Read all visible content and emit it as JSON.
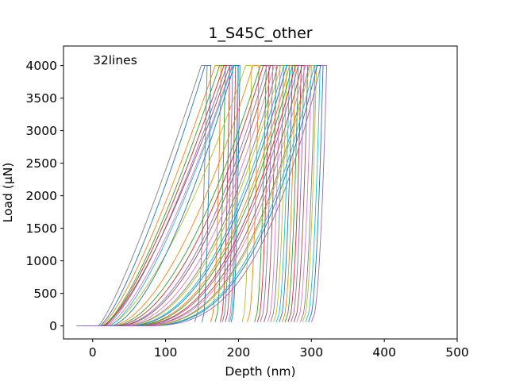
{
  "chart_data": {
    "type": "line",
    "title": "1_S45C_other",
    "xlabel": "Depth (nm)",
    "ylabel": "Load (µN)",
    "xlim": [
      -40,
      500
    ],
    "ylim": [
      -200,
      4300
    ],
    "xticks": [
      0,
      100,
      200,
      300,
      400,
      500
    ],
    "yticks": [
      0,
      500,
      1000,
      1500,
      2000,
      2500,
      3000,
      3500,
      4000
    ],
    "xtick_labels": [
      "0",
      "100",
      "200",
      "300",
      "400",
      "500"
    ],
    "ytick_labels": [
      "0",
      "500",
      "1000",
      "1500",
      "2000",
      "2500",
      "3000",
      "3500",
      "4000"
    ],
    "annotation": "32lines",
    "grid": false,
    "legend": "none",
    "line_count": 32,
    "series": [
      {
        "color": "#1f77b4",
        "start": -20,
        "onset": 10,
        "peak": 162,
        "unloadEnd": 150,
        "shape": 1.3
      },
      {
        "color": "#ff7f0e",
        "start": -15,
        "onset": 12,
        "peak": 176,
        "unloadEnd": 162,
        "shape": 1.3
      },
      {
        "color": "#2ca02c",
        "start": -18,
        "onset": 14,
        "peak": 182,
        "unloadEnd": 168,
        "shape": 1.35
      },
      {
        "color": "#d62728",
        "start": -12,
        "onset": 15,
        "peak": 188,
        "unloadEnd": 175,
        "shape": 1.35
      },
      {
        "color": "#9467bd",
        "start": -22,
        "onset": 16,
        "peak": 192,
        "unloadEnd": 178,
        "shape": 1.4
      },
      {
        "color": "#8c564b",
        "start": -10,
        "onset": 13,
        "peak": 196,
        "unloadEnd": 182,
        "shape": 1.4
      },
      {
        "color": "#e377c2",
        "start": -16,
        "onset": 18,
        "peak": 199,
        "unloadEnd": 186,
        "shape": 1.45
      },
      {
        "color": "#7f7f7f",
        "start": -20,
        "onset": 8,
        "peak": 157,
        "unloadEnd": 140,
        "shape": 1.2
      },
      {
        "color": "#bcbd22",
        "start": -14,
        "onset": 20,
        "peak": 218,
        "unloadEnd": 205,
        "shape": 1.5
      },
      {
        "color": "#17becf",
        "start": -18,
        "onset": 22,
        "peak": 200,
        "unloadEnd": 188,
        "shape": 1.45
      },
      {
        "color": "#1f77b4",
        "start": -8,
        "onset": 25,
        "peak": 202,
        "unloadEnd": 190,
        "shape": 1.6
      },
      {
        "color": "#ff7f0e",
        "start": -12,
        "onset": 26,
        "peak": 228,
        "unloadEnd": 212,
        "shape": 1.7
      },
      {
        "color": "#2ca02c",
        "start": -20,
        "onset": 28,
        "peak": 238,
        "unloadEnd": 222,
        "shape": 1.8
      },
      {
        "color": "#d62728",
        "start": -15,
        "onset": 30,
        "peak": 242,
        "unloadEnd": 226,
        "shape": 1.9
      },
      {
        "color": "#9467bd",
        "start": -10,
        "onset": 32,
        "peak": 247,
        "unloadEnd": 230,
        "shape": 2.0
      },
      {
        "color": "#8c564b",
        "start": -18,
        "onset": 34,
        "peak": 252,
        "unloadEnd": 235,
        "shape": 2.0
      },
      {
        "color": "#e377c2",
        "start": -14,
        "onset": 36,
        "peak": 257,
        "unloadEnd": 240,
        "shape": 2.1
      },
      {
        "color": "#7f7f7f",
        "start": -22,
        "onset": 38,
        "peak": 262,
        "unloadEnd": 244,
        "shape": 2.2
      },
      {
        "color": "#bcbd22",
        "start": -12,
        "onset": 40,
        "peak": 266,
        "unloadEnd": 248,
        "shape": 2.2
      },
      {
        "color": "#17becf",
        "start": -16,
        "onset": 42,
        "peak": 270,
        "unloadEnd": 252,
        "shape": 2.3
      },
      {
        "color": "#1f77b4",
        "start": -10,
        "onset": 44,
        "peak": 274,
        "unloadEnd": 256,
        "shape": 2.3
      },
      {
        "color": "#ff7f0e",
        "start": -20,
        "onset": 46,
        "peak": 278,
        "unloadEnd": 260,
        "shape": 2.4
      },
      {
        "color": "#2ca02c",
        "start": -14,
        "onset": 48,
        "peak": 282,
        "unloadEnd": 264,
        "shape": 2.4
      },
      {
        "color": "#d62728",
        "start": -18,
        "onset": 50,
        "peak": 286,
        "unloadEnd": 268,
        "shape": 2.5
      },
      {
        "color": "#9467bd",
        "start": -12,
        "onset": 52,
        "peak": 290,
        "unloadEnd": 272,
        "shape": 2.5
      },
      {
        "color": "#8c564b",
        "start": -16,
        "onset": 54,
        "peak": 295,
        "unloadEnd": 276,
        "shape": 2.6
      },
      {
        "color": "#e377c2",
        "start": -10,
        "onset": 56,
        "peak": 300,
        "unloadEnd": 280,
        "shape": 2.6
      },
      {
        "color": "#7f7f7f",
        "start": -20,
        "onset": 58,
        "peak": 305,
        "unloadEnd": 285,
        "shape": 2.7
      },
      {
        "color": "#bcbd22",
        "start": -14,
        "onset": 60,
        "peak": 307,
        "unloadEnd": 288,
        "shape": 2.7
      },
      {
        "color": "#17becf",
        "start": -18,
        "onset": 62,
        "peak": 312,
        "unloadEnd": 292,
        "shape": 2.8
      },
      {
        "color": "#1f77b4",
        "start": -12,
        "onset": 64,
        "peak": 316,
        "unloadEnd": 296,
        "shape": 2.8
      },
      {
        "color": "#9467bd",
        "start": -16,
        "onset": 66,
        "peak": 321,
        "unloadEnd": 300,
        "shape": 2.9
      }
    ],
    "curve_model": {
      "peak_load": 4000,
      "min_load": 60,
      "hold_nm": 8,
      "unload_exponent": 2.2
    }
  }
}
